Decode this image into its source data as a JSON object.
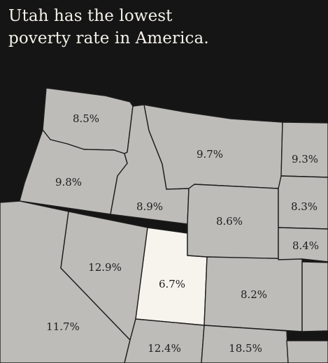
{
  "title": {
    "line1": "Utah has the lowest",
    "line2": "poverty rate in America."
  },
  "colors": {
    "background": "#151515",
    "state_fill": "#bdbcb8",
    "highlight_fill": "#f7f4ee",
    "border": "#1d1d1d",
    "title_text": "#f4f1ea"
  },
  "states": {
    "washington": "8.5%",
    "oregon": "9.8%",
    "california": "11.7%",
    "idaho": "8.9%",
    "nevada": "12.9%",
    "utah": "6.7%",
    "arizona": "12.4%",
    "montana": "9.7%",
    "wyoming": "8.6%",
    "colorado": "8.2%",
    "new_mexico": "18.5%",
    "north_dakota": "9.3%",
    "south_dakota": "8.3%",
    "nebraska": "8.4%"
  }
}
